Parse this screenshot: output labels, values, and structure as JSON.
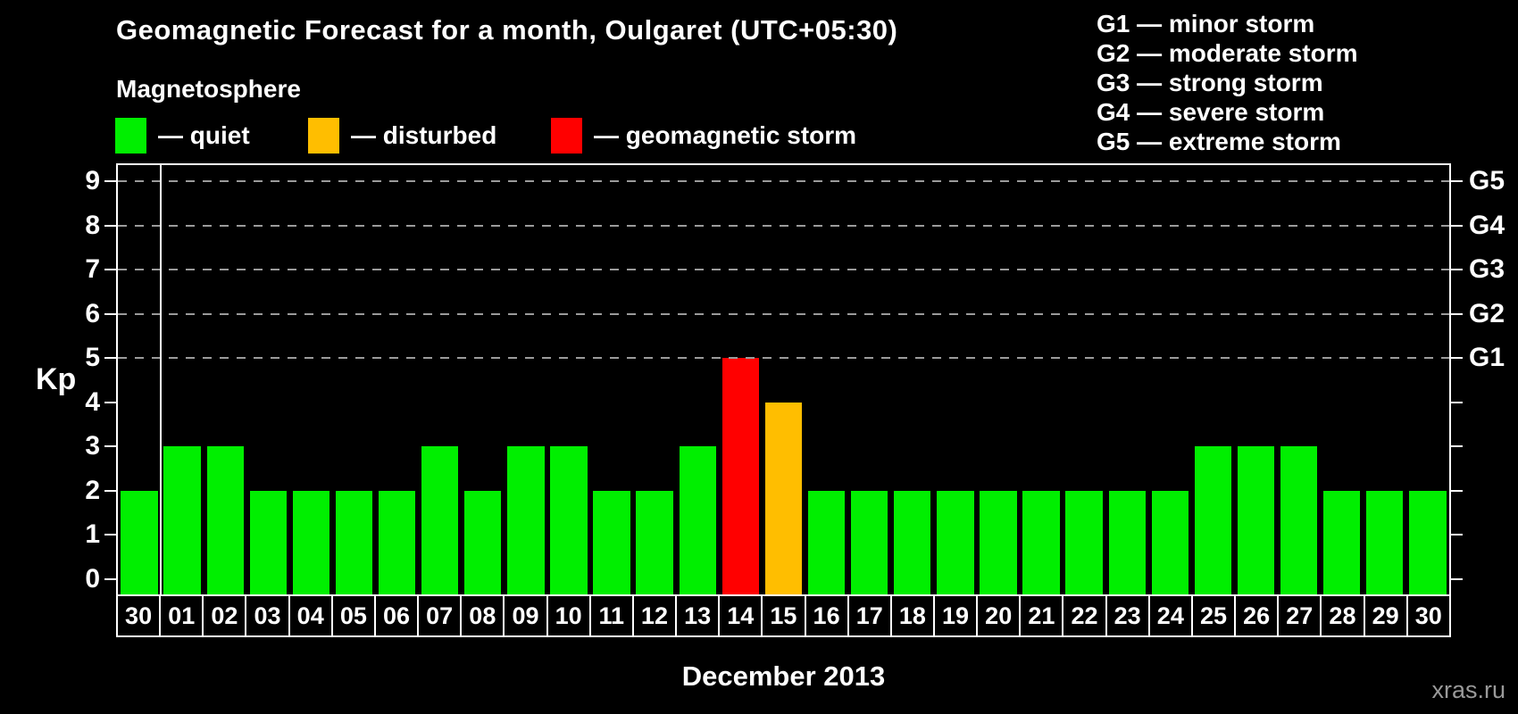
{
  "header": {
    "title": "Geomagnetic Forecast for a month, Oulgaret (UTC+05:30)",
    "legend_title": "Magnetosphere",
    "legend_items": [
      {
        "status": "quiet",
        "label": "— quiet"
      },
      {
        "status": "disturbed",
        "label": "— disturbed"
      },
      {
        "status": "storm",
        "label": "— geomagnetic storm"
      }
    ],
    "g_legend": [
      "G1 — minor storm",
      "G2 — moderate storm",
      "G3 — strong storm",
      "G4 — severe storm",
      "G5 — extreme storm"
    ]
  },
  "colors": {
    "quiet": "#00ef00",
    "disturbed": "#ffbe00",
    "storm": "#ff0000",
    "background": "#000000",
    "frame": "#ffffff",
    "gridline": "#9b9b9b",
    "watermark_text": "#999999"
  },
  "footer": {
    "x_axis_title": "December 2013",
    "watermark": "xras.ru"
  },
  "chart_data": {
    "type": "bar",
    "title": "Geomagnetic Forecast for a month, Oulgaret (UTC+05:30)",
    "x_axis_label": "December 2013",
    "y_axis_label": "Kp",
    "ylim": [
      0,
      9
    ],
    "y_ticks": [
      0,
      1,
      2,
      3,
      4,
      5,
      6,
      7,
      8,
      9
    ],
    "gridline_levels": [
      5,
      6,
      7,
      8,
      9
    ],
    "grid": "dashed horizontal at storm levels only",
    "legend_position": "top-left",
    "right_axis_labels": [
      {
        "label": "G1",
        "value": 5
      },
      {
        "label": "G2",
        "value": 6
      },
      {
        "label": "G3",
        "value": 7
      },
      {
        "label": "G4",
        "value": 8
      },
      {
        "label": "G5",
        "value": 9
      }
    ],
    "categories": [
      "30",
      "01",
      "02",
      "03",
      "04",
      "05",
      "06",
      "07",
      "08",
      "09",
      "10",
      "11",
      "12",
      "13",
      "14",
      "15",
      "16",
      "17",
      "18",
      "19",
      "20",
      "21",
      "22",
      "23",
      "24",
      "25",
      "26",
      "27",
      "28",
      "29",
      "30"
    ],
    "values": [
      2,
      3,
      3,
      2,
      2,
      2,
      2,
      3,
      2,
      3,
      3,
      2,
      2,
      3,
      5,
      4,
      2,
      2,
      2,
      2,
      2,
      2,
      2,
      2,
      2,
      3,
      3,
      3,
      2,
      2,
      2
    ],
    "statuses": [
      "quiet",
      "quiet",
      "quiet",
      "quiet",
      "quiet",
      "quiet",
      "quiet",
      "quiet",
      "quiet",
      "quiet",
      "quiet",
      "quiet",
      "quiet",
      "quiet",
      "storm",
      "disturbed",
      "quiet",
      "quiet",
      "quiet",
      "quiet",
      "quiet",
      "quiet",
      "quiet",
      "quiet",
      "quiet",
      "quiet",
      "quiet",
      "quiet",
      "quiet",
      "quiet",
      "quiet"
    ],
    "separator_after_index": 0
  }
}
